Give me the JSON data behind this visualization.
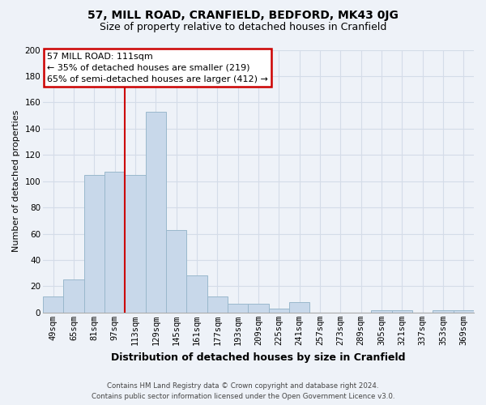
{
  "title": "57, MILL ROAD, CRANFIELD, BEDFORD, MK43 0JG",
  "subtitle": "Size of property relative to detached houses in Cranfield",
  "xlabel": "Distribution of detached houses by size in Cranfield",
  "ylabel": "Number of detached properties",
  "bar_labels": [
    "49sqm",
    "65sqm",
    "81sqm",
    "97sqm",
    "113sqm",
    "129sqm",
    "145sqm",
    "161sqm",
    "177sqm",
    "193sqm",
    "209sqm",
    "225sqm",
    "241sqm",
    "257sqm",
    "273sqm",
    "289sqm",
    "305sqm",
    "321sqm",
    "337sqm",
    "353sqm",
    "369sqm"
  ],
  "bar_values": [
    12,
    25,
    105,
    107,
    105,
    153,
    63,
    28,
    12,
    7,
    7,
    3,
    8,
    0,
    0,
    0,
    2,
    2,
    0,
    2,
    2
  ],
  "bar_color": "#c8d8ea",
  "bar_edge_color": "#9ab8cc",
  "vline_color": "#cc0000",
  "annotation_text": "57 MILL ROAD: 111sqm\n← 35% of detached houses are smaller (219)\n65% of semi-detached houses are larger (412) →",
  "annotation_box_color": "white",
  "annotation_box_edge_color": "#cc0000",
  "ylim": [
    0,
    200
  ],
  "yticks": [
    0,
    20,
    40,
    60,
    80,
    100,
    120,
    140,
    160,
    180,
    200
  ],
  "grid_color": "#d4dce8",
  "footer_line1": "Contains HM Land Registry data © Crown copyright and database right 2024.",
  "footer_line2": "Contains public sector information licensed under the Open Government Licence v3.0.",
  "background_color": "#eef2f8",
  "title_fontsize": 10,
  "subtitle_fontsize": 9,
  "ylabel_fontsize": 8,
  "xlabel_fontsize": 9,
  "tick_fontsize": 7.5,
  "annotation_fontsize": 8
}
